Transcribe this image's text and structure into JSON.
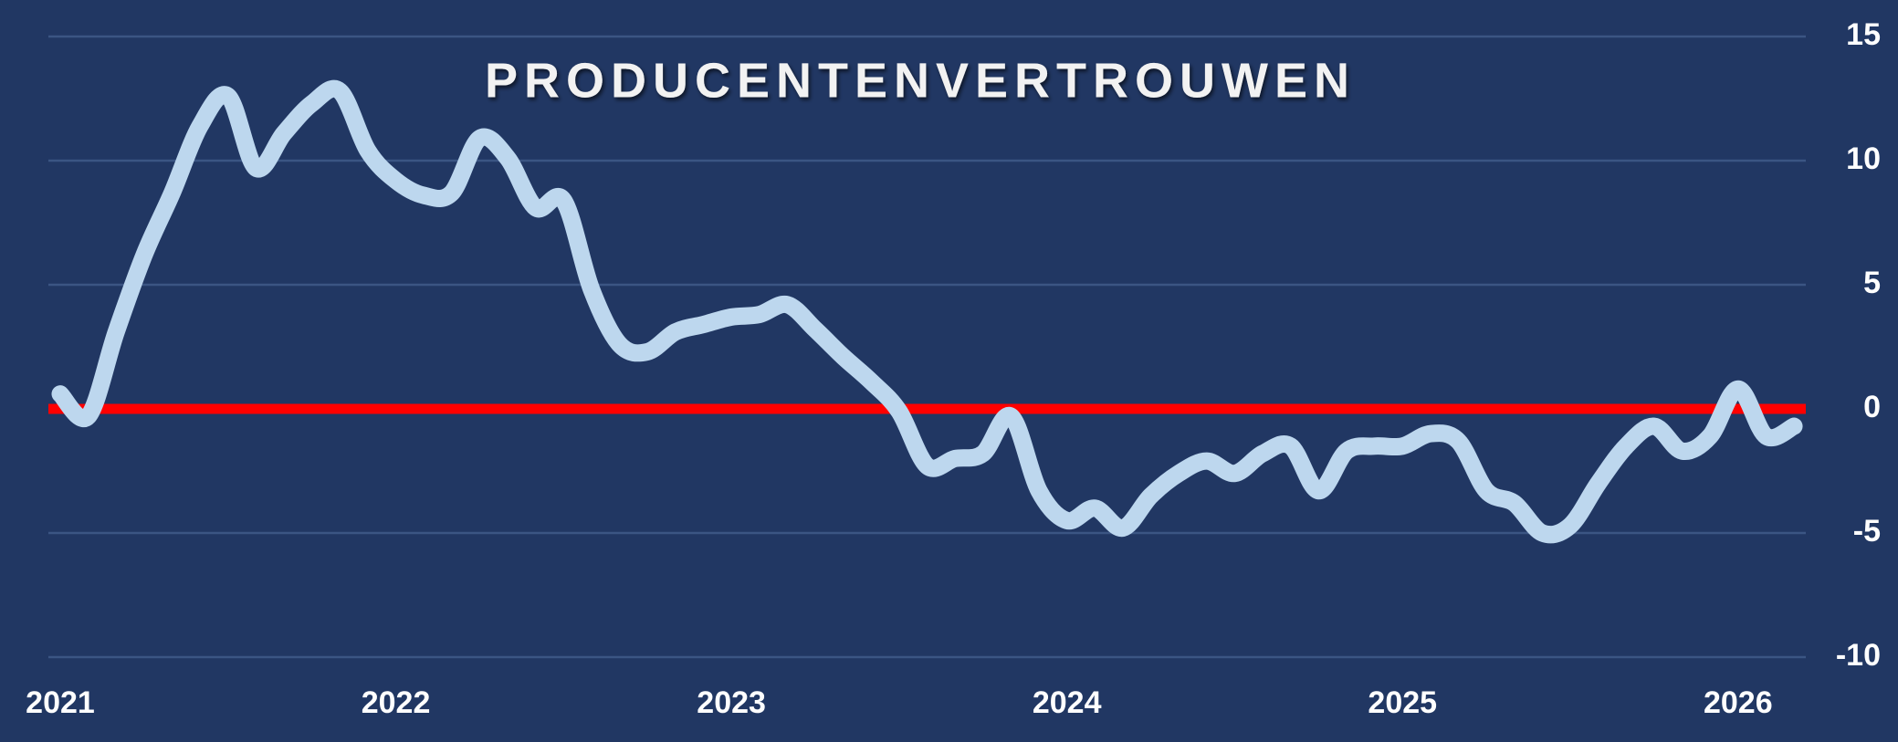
{
  "chart_data": {
    "type": "line",
    "title": "PRODUCENTENVERTROUWEN",
    "categories": [
      "2021",
      null,
      null,
      null,
      null,
      null,
      null,
      null,
      null,
      null,
      null,
      null,
      "2022",
      null,
      null,
      null,
      null,
      null,
      null,
      null,
      null,
      null,
      null,
      null,
      "2023",
      null,
      null,
      null,
      null,
      null,
      null,
      null,
      null,
      null,
      null,
      null,
      "2024",
      null,
      null,
      null,
      null,
      null,
      null,
      null,
      null,
      null,
      null,
      null,
      "2025",
      null,
      null,
      null,
      null,
      null,
      null,
      null,
      null,
      null,
      null,
      null,
      "2026",
      null,
      null
    ],
    "values": [
      0.6,
      -0.3,
      3.1,
      6.2,
      8.7,
      11.4,
      12.6,
      9.7,
      11.1,
      12.3,
      12.8,
      10.4,
      9.2,
      8.6,
      8.7,
      10.9,
      10.1,
      8.1,
      8.4,
      4.8,
      2.6,
      2.3,
      3.1,
      3.4,
      3.7,
      3.8,
      4.2,
      3.2,
      2.1,
      1.1,
      -0.1,
      -2.3,
      -2.0,
      -1.8,
      -0.3,
      -3.3,
      -4.5,
      -4.0,
      -4.8,
      -3.5,
      -2.6,
      -2.1,
      -2.6,
      -1.8,
      -1.5,
      -3.3,
      -1.7,
      -1.5,
      -1.5,
      -1.0,
      -1.3,
      -3.3,
      -3.8,
      -5.0,
      -4.7,
      -3.0,
      -1.5,
      -0.7,
      -1.7,
      -1.1,
      0.8,
      -1.1,
      -0.7
    ],
    "color": "#bdd7ee",
    "ylim": [
      -10,
      15
    ],
    "yticks": [
      -10,
      -5,
      0,
      5,
      10,
      15
    ],
    "grid": true,
    "grid_color": "#3b5583",
    "zero_line_color": "#ff0000",
    "background": "#213763",
    "y_axis_side": "right"
  }
}
